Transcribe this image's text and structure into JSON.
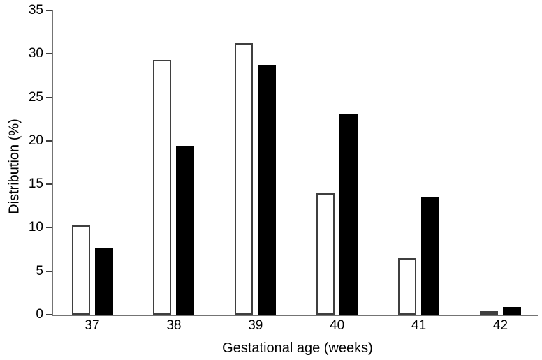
{
  "chart_data": {
    "type": "bar",
    "title": "",
    "xlabel": "Gestational age (weeks)",
    "ylabel": "Distribution (%)",
    "categories": [
      "37",
      "38",
      "39",
      "40",
      "41",
      "42"
    ],
    "series": [
      {
        "name": "open-white-bars",
        "fill": "#ffffff",
        "stroke": "#3f3f3f",
        "values": [
          10.3,
          29.3,
          31.2,
          14.0,
          6.5,
          0.4
        ]
      },
      {
        "name": "solid-black-bars",
        "fill": "#000000",
        "stroke": "#000000",
        "values": [
          7.7,
          19.4,
          28.7,
          23.1,
          13.5,
          0.9
        ]
      }
    ],
    "ylim": [
      0,
      35
    ],
    "yticks": [
      0,
      5,
      10,
      15,
      20,
      25,
      30,
      35
    ],
    "grid": false,
    "legend": "none",
    "spines": [
      "left",
      "bottom"
    ]
  },
  "colors": {
    "background": "#ffffff",
    "axis": "#747474",
    "tick": "#3f3f3f",
    "text": "#000000"
  }
}
